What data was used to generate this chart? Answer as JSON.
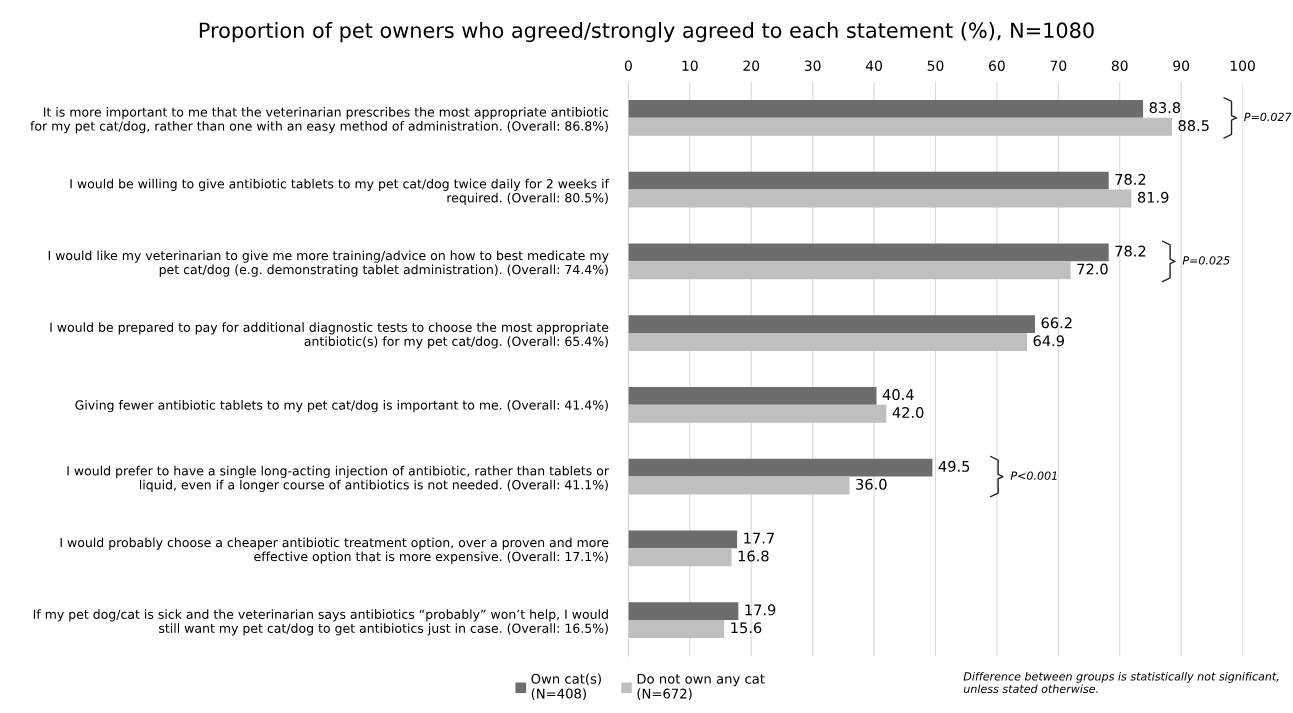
{
  "chart_data": {
    "type": "bar",
    "orientation": "horizontal",
    "title": "Proportion of pet owners who agreed/strongly agreed to each statement (%), N=1080",
    "categories": [
      "It is more important to me that the veterinarian prescribes the most appropriate antibiotic\nfor my pet cat/dog, rather than one with an easy method of administration. (Overall: 86.8%)",
      "I would be willing to give antibiotic tablets to my pet cat/dog twice daily for 2 weeks if\nrequired. (Overall: 80.5%)",
      "I would like my veterinarian to give me more training/advice on how to best medicate my\npet cat/dog (e.g. demonstrating tablet administration). (Overall: 74.4%)",
      "I would be prepared to pay for additional diagnostic tests to choose the most appropriate\nantibiotic(s) for my pet cat/dog. (Overall: 65.4%)",
      "Giving fewer antibiotic tablets to my pet cat/dog is important to me. (Overall: 41.4%)",
      "I would prefer to have a single long-acting injection of antibiotic, rather than tablets or\nliquid, even if a longer course of antibiotics is not needed. (Overall: 41.1%)",
      "I would probably choose a cheaper antibiotic treatment option, over a proven and more\neffective option that is more expensive. (Overall: 17.1%)",
      "If my pet dog/cat is sick and the veterinarian says antibiotics “probably” won’t help, I would\nstill want my pet cat/dog to get antibiotics just in case. (Overall: 16.5%)"
    ],
    "series": [
      {
        "name": "Own cat(s)\n(N=408)",
        "color": "#6d6d6d",
        "values": [
          83.8,
          78.2,
          78.2,
          66.2,
          40.4,
          49.5,
          17.7,
          17.9
        ],
        "value_labels": [
          "83.8",
          "78.2",
          "78.2",
          "66.2",
          "40.4",
          "49.5",
          "17.7",
          "17.9"
        ]
      },
      {
        "name": "Do not own any cat\n(N=672)",
        "color": "#bfbfbf",
        "values": [
          88.5,
          81.9,
          72.0,
          64.9,
          42.0,
          36.0,
          16.8,
          15.6
        ],
        "value_labels": [
          "88.5",
          "81.9",
          "72.0",
          "64.9",
          "42.0",
          "36.0",
          "16.8",
          "15.6"
        ]
      }
    ],
    "xlim": [
      0,
      100
    ],
    "xticks": [
      0,
      10,
      20,
      30,
      40,
      50,
      60,
      70,
      80,
      90,
      100
    ],
    "grid": "x",
    "legend": "bottom",
    "annotations": [
      "P=0.027",
      "P=0.025",
      "P<0.001",
      "Difference between groups is statistically not significant,\nunless stated otherwise."
    ]
  }
}
